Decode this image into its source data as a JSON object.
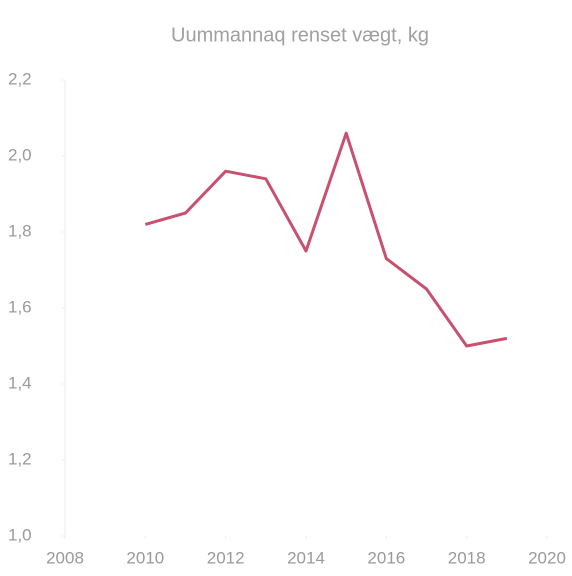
{
  "chart_data": {
    "type": "line",
    "title": "Uummannaq renset vægt, kg",
    "x": [
      2010,
      2011,
      2012,
      2013,
      2014,
      2015,
      2016,
      2017,
      2018,
      2019
    ],
    "series": [
      {
        "name": "Uummannaq",
        "color": "#c9506f",
        "values": [
          1.82,
          1.85,
          1.96,
          1.94,
          1.75,
          2.06,
          1.73,
          1.65,
          1.5,
          1.52
        ]
      }
    ],
    "xlim": [
      2008,
      2020
    ],
    "xticks": [
      2008,
      2010,
      2012,
      2014,
      2016,
      2018,
      2020
    ],
    "ylim": [
      1.0,
      2.2
    ],
    "yticks": [
      {
        "value": 1.0,
        "label": "1,0"
      },
      {
        "value": 1.2,
        "label": "1,2"
      },
      {
        "value": 1.4,
        "label": "1,4"
      },
      {
        "value": 1.6,
        "label": "1,6"
      },
      {
        "value": 1.8,
        "label": "1,8"
      },
      {
        "value": 2.0,
        "label": "2,0"
      },
      {
        "value": 2.2,
        "label": "2,2"
      }
    ]
  }
}
